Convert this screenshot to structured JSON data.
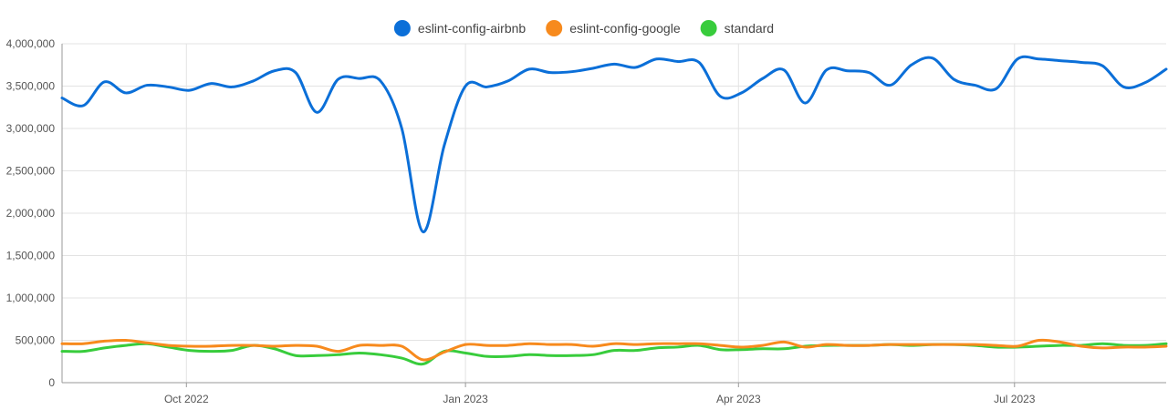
{
  "chart_data": {
    "type": "line",
    "x_dates": [
      "2022-08-21",
      "2022-08-28",
      "2022-09-04",
      "2022-09-11",
      "2022-09-18",
      "2022-09-25",
      "2022-10-02",
      "2022-10-09",
      "2022-10-16",
      "2022-10-23",
      "2022-10-30",
      "2022-11-06",
      "2022-11-13",
      "2022-11-20",
      "2022-11-27",
      "2022-12-04",
      "2022-12-11",
      "2022-12-18",
      "2022-12-25",
      "2023-01-01",
      "2023-01-08",
      "2023-01-15",
      "2023-01-22",
      "2023-01-29",
      "2023-02-05",
      "2023-02-12",
      "2023-02-19",
      "2023-02-26",
      "2023-03-05",
      "2023-03-12",
      "2023-03-19",
      "2023-03-26",
      "2023-04-02",
      "2023-04-09",
      "2023-04-16",
      "2023-04-23",
      "2023-04-30",
      "2023-05-07",
      "2023-05-14",
      "2023-05-21",
      "2023-05-28",
      "2023-06-04",
      "2023-06-11",
      "2023-06-18",
      "2023-06-25",
      "2023-07-02",
      "2023-07-09",
      "2023-07-16",
      "2023-07-23",
      "2023-07-30",
      "2023-08-06",
      "2023-08-13",
      "2023-08-20"
    ],
    "series": [
      {
        "name": "eslint-config-airbnb",
        "color": "#0b6fd8",
        "values": [
          3360000,
          3270000,
          3550000,
          3420000,
          3510000,
          3490000,
          3450000,
          3530000,
          3490000,
          3560000,
          3680000,
          3660000,
          3190000,
          3580000,
          3590000,
          3560000,
          3000000,
          1780000,
          2800000,
          3500000,
          3490000,
          3560000,
          3700000,
          3660000,
          3670000,
          3710000,
          3760000,
          3720000,
          3820000,
          3790000,
          3780000,
          3380000,
          3420000,
          3590000,
          3690000,
          3300000,
          3690000,
          3680000,
          3660000,
          3510000,
          3750000,
          3830000,
          3580000,
          3510000,
          3470000,
          3820000,
          3820000,
          3800000,
          3780000,
          3740000,
          3490000,
          3540000,
          3700000
        ]
      },
      {
        "name": "eslint-config-google",
        "color": "#f78a1d",
        "values": [
          460000,
          460000,
          490000,
          500000,
          470000,
          440000,
          430000,
          430000,
          440000,
          440000,
          430000,
          440000,
          430000,
          370000,
          440000,
          440000,
          430000,
          270000,
          360000,
          450000,
          440000,
          440000,
          460000,
          450000,
          450000,
          430000,
          460000,
          450000,
          460000,
          460000,
          460000,
          440000,
          420000,
          440000,
          480000,
          420000,
          450000,
          440000,
          440000,
          450000,
          450000,
          450000,
          450000,
          450000,
          440000,
          430000,
          500000,
          480000,
          430000,
          410000,
          420000,
          420000,
          430000
        ]
      },
      {
        "name": "standard",
        "color": "#38cc3c",
        "values": [
          370000,
          370000,
          410000,
          440000,
          460000,
          420000,
          380000,
          370000,
          380000,
          440000,
          400000,
          320000,
          320000,
          330000,
          350000,
          330000,
          290000,
          220000,
          370000,
          350000,
          310000,
          310000,
          330000,
          320000,
          320000,
          330000,
          380000,
          380000,
          410000,
          420000,
          440000,
          390000,
          390000,
          400000,
          400000,
          430000,
          440000,
          440000,
          440000,
          450000,
          440000,
          450000,
          450000,
          440000,
          420000,
          420000,
          430000,
          440000,
          440000,
          460000,
          440000,
          440000,
          460000
        ]
      }
    ],
    "x_ticks": [
      {
        "label": "Oct 2022",
        "date": "2022-10-01"
      },
      {
        "label": "Jan 2023",
        "date": "2023-01-01"
      },
      {
        "label": "Apr 2023",
        "date": "2023-04-01"
      },
      {
        "label": "Jul 2023",
        "date": "2023-07-01"
      }
    ],
    "y_ticks": [
      {
        "label": "0",
        "value": 0
      },
      {
        "label": "500,000",
        "value": 500000
      },
      {
        "label": "1,000,000",
        "value": 1000000
      },
      {
        "label": "1,500,000",
        "value": 1500000
      },
      {
        "label": "2,000,000",
        "value": 2000000
      },
      {
        "label": "2,500,000",
        "value": 2500000
      },
      {
        "label": "3,000,000",
        "value": 3000000
      },
      {
        "label": "3,500,000",
        "value": 3500000
      },
      {
        "label": "4,000,000",
        "value": 4000000
      }
    ],
    "ylim": [
      0,
      4000000
    ],
    "xlim": [
      "2022-08-21",
      "2023-08-20"
    ],
    "grid": true,
    "legend_position": "top-center",
    "title": "",
    "xlabel": "",
    "ylabel": ""
  }
}
